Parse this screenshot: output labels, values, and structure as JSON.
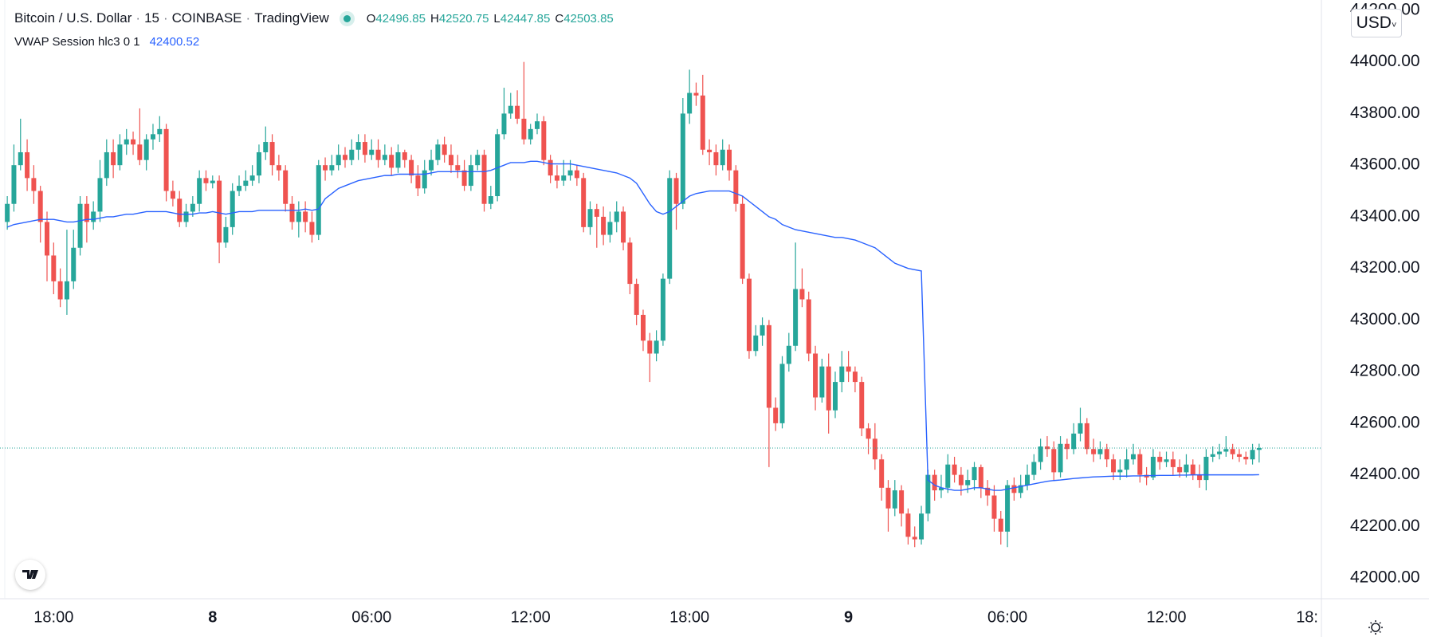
{
  "chart_data": {
    "type": "candlestick",
    "title": "Bitcoin / U.S. Dollar",
    "interval": "15",
    "exchange": "COINBASE",
    "source": "TradingView",
    "ohlc_labels": [
      "O",
      "H",
      "L",
      "C"
    ],
    "currency": "USD",
    "up_color": "#26a69a",
    "down_color": "#ef5350",
    "ylim": [
      41920,
      44240
    ],
    "yticks": [
      {
        "value": 42000,
        "label": "42000.00"
      },
      {
        "value": 42200,
        "label": "42200.00"
      },
      {
        "value": 42400,
        "label": "42400.00"
      },
      {
        "value": 42600,
        "label": "42600.00"
      },
      {
        "value": 42800,
        "label": "42800.00"
      },
      {
        "value": 43000,
        "label": "43000.00"
      },
      {
        "value": 43200,
        "label": "43200.00"
      },
      {
        "value": 43400,
        "label": "43400.00"
      },
      {
        "value": 43600,
        "label": "43600.00"
      },
      {
        "value": 43800,
        "label": "43800.00"
      },
      {
        "value": 44000,
        "label": "44000.00"
      },
      {
        "value": 44200,
        "label": "44200.00"
      }
    ],
    "xlim": [
      -1.1,
      198.4
    ],
    "xticks": [
      {
        "value": 7,
        "label": "18:00"
      },
      {
        "value": 31,
        "label": "8"
      },
      {
        "value": 55,
        "label": "06:00"
      },
      {
        "value": 79,
        "label": "12:00"
      },
      {
        "value": 103,
        "label": "18:00"
      },
      {
        "value": 127,
        "label": "9"
      },
      {
        "value": 151,
        "label": "06:00"
      },
      {
        "value": 175,
        "label": "12:00"
      },
      {
        "value": 199,
        "label": "18:"
      }
    ],
    "grid": false,
    "candles": [
      [
        43380,
        43480,
        43350,
        43450
      ],
      [
        43450,
        43680,
        43420,
        43600
      ],
      [
        43600,
        43780,
        43580,
        43650
      ],
      [
        43650,
        43700,
        43500,
        43550
      ],
      [
        43550,
        43600,
        43450,
        43500
      ],
      [
        43500,
        43520,
        43300,
        43380
      ],
      [
        43380,
        43420,
        43150,
        43250
      ],
      [
        43250,
        43300,
        43100,
        43150
      ],
      [
        43150,
        43200,
        43050,
        43080
      ],
      [
        43080,
        43350,
        43020,
        43150
      ],
      [
        43150,
        43350,
        43120,
        43280
      ],
      [
        43280,
        43480,
        43250,
        43450
      ],
      [
        43450,
        43480,
        43300,
        43380
      ],
      [
        43380,
        43460,
        43350,
        43420
      ],
      [
        43420,
        43620,
        43380,
        43550
      ],
      [
        43550,
        43700,
        43520,
        43650
      ],
      [
        43650,
        43700,
        43550,
        43600
      ],
      [
        43600,
        43720,
        43580,
        43680
      ],
      [
        43680,
        43740,
        43640,
        43700
      ],
      [
        43700,
        43730,
        43640,
        43680
      ],
      [
        43680,
        43820,
        43600,
        43620
      ],
      [
        43620,
        43720,
        43580,
        43700
      ],
      [
        43700,
        43760,
        43660,
        43720
      ],
      [
        43720,
        43790,
        43690,
        43740
      ],
      [
        43740,
        43760,
        43460,
        43500
      ],
      [
        43500,
        43540,
        43440,
        43470
      ],
      [
        43470,
        43500,
        43360,
        43380
      ],
      [
        43380,
        43450,
        43360,
        43420
      ],
      [
        43420,
        43480,
        43400,
        43450
      ],
      [
        43450,
        43580,
        43420,
        43550
      ],
      [
        43550,
        43580,
        43500,
        43530
      ],
      [
        43530,
        43560,
        43510,
        43540
      ],
      [
        43540,
        43560,
        43220,
        43300
      ],
      [
        43300,
        43400,
        43280,
        43360
      ],
      [
        43360,
        43530,
        43330,
        43500
      ],
      [
        43500,
        43560,
        43480,
        43520
      ],
      [
        43520,
        43580,
        43500,
        43540
      ],
      [
        43540,
        43600,
        43520,
        43560
      ],
      [
        43560,
        43680,
        43530,
        43650
      ],
      [
        43650,
        43750,
        43620,
        43690
      ],
      [
        43690,
        43720,
        43560,
        43600
      ],
      [
        43600,
        43640,
        43540,
        43580
      ],
      [
        43580,
        43600,
        43420,
        43450
      ],
      [
        43450,
        43480,
        43350,
        43380
      ],
      [
        43380,
        43460,
        43320,
        43420
      ],
      [
        43420,
        43460,
        43340,
        43380
      ],
      [
        43380,
        43420,
        43300,
        43330
      ],
      [
        43330,
        43620,
        43310,
        43600
      ],
      [
        43600,
        43630,
        43540,
        43580
      ],
      [
        43580,
        43640,
        43560,
        43600
      ],
      [
        43600,
        43680,
        43580,
        43640
      ],
      [
        43640,
        43670,
        43590,
        43620
      ],
      [
        43620,
        43700,
        43600,
        43660
      ],
      [
        43660,
        43720,
        43620,
        43690
      ],
      [
        43690,
        43720,
        43610,
        43640
      ],
      [
        43640,
        43700,
        43620,
        43660
      ],
      [
        43660,
        43700,
        43590,
        43620
      ],
      [
        43620,
        43680,
        43600,
        43640
      ],
      [
        43640,
        43670,
        43560,
        43590
      ],
      [
        43590,
        43680,
        43570,
        43650
      ],
      [
        43650,
        43660,
        43590,
        43620
      ],
      [
        43620,
        43640,
        43530,
        43560
      ],
      [
        43560,
        43600,
        43480,
        43510
      ],
      [
        43510,
        43620,
        43490,
        43580
      ],
      [
        43580,
        43660,
        43560,
        43620
      ],
      [
        43620,
        43700,
        43600,
        43680
      ],
      [
        43680,
        43710,
        43610,
        43640
      ],
      [
        43640,
        43680,
        43570,
        43600
      ],
      [
        43600,
        43640,
        43550,
        43580
      ],
      [
        43580,
        43620,
        43500,
        43520
      ],
      [
        43520,
        43640,
        43500,
        43600
      ],
      [
        43600,
        43660,
        43580,
        43640
      ],
      [
        43640,
        43660,
        43420,
        43450
      ],
      [
        43450,
        43520,
        43430,
        43480
      ],
      [
        43480,
        43740,
        43460,
        43720
      ],
      [
        43720,
        43900,
        43700,
        43800
      ],
      [
        43800,
        43880,
        43780,
        43830
      ],
      [
        43830,
        43890,
        43760,
        43780
      ],
      [
        43780,
        44000,
        43680,
        43700
      ],
      [
        43700,
        43760,
        43680,
        43740
      ],
      [
        43740,
        43800,
        43720,
        43770
      ],
      [
        43770,
        43790,
        43600,
        43620
      ],
      [
        43620,
        43640,
        43530,
        43560
      ],
      [
        43560,
        43600,
        43510,
        43540
      ],
      [
        43540,
        43620,
        43520,
        43560
      ],
      [
        43560,
        43620,
        43540,
        43580
      ],
      [
        43580,
        43600,
        43520,
        43550
      ],
      [
        43550,
        43570,
        43340,
        43360
      ],
      [
        43360,
        43460,
        43330,
        43430
      ],
      [
        43430,
        43450,
        43280,
        43400
      ],
      [
        43400,
        43440,
        43290,
        43330
      ],
      [
        43330,
        43420,
        43300,
        43380
      ],
      [
        43380,
        43460,
        43340,
        43420
      ],
      [
        43420,
        43440,
        43270,
        43300
      ],
      [
        43300,
        43320,
        43100,
        43140
      ],
      [
        43140,
        43160,
        42980,
        43020
      ],
      [
        43020,
        43040,
        42880,
        42920
      ],
      [
        42920,
        42950,
        42760,
        42870
      ],
      [
        42870,
        42960,
        42840,
        42920
      ],
      [
        42920,
        43180,
        42900,
        43160
      ],
      [
        43160,
        43580,
        43140,
        43550
      ],
      [
        43550,
        43570,
        43350,
        43450
      ],
      [
        43450,
        43860,
        43430,
        43800
      ],
      [
        43800,
        43970,
        43760,
        43880
      ],
      [
        43880,
        43920,
        43830,
        43870
      ],
      [
        43870,
        43950,
        43640,
        43660
      ],
      [
        43660,
        43700,
        43600,
        43650
      ],
      [
        43650,
        43680,
        43560,
        43600
      ],
      [
        43600,
        43700,
        43580,
        43660
      ],
      [
        43660,
        43680,
        43540,
        43580
      ],
      [
        43580,
        43600,
        43420,
        43450
      ],
      [
        43450,
        43480,
        43140,
        43160
      ],
      [
        43160,
        43180,
        42850,
        42880
      ],
      [
        42880,
        42980,
        42860,
        42940
      ],
      [
        42940,
        43010,
        42900,
        42980
      ],
      [
        42980,
        43000,
        42430,
        42660
      ],
      [
        42660,
        42700,
        42570,
        42600
      ],
      [
        42600,
        42860,
        42580,
        42830
      ],
      [
        42830,
        42950,
        42800,
        42900
      ],
      [
        42900,
        43300,
        42880,
        43120
      ],
      [
        43120,
        43200,
        43050,
        43080
      ],
      [
        43080,
        43110,
        42840,
        42870
      ],
      [
        42870,
        42900,
        42650,
        42700
      ],
      [
        42700,
        42850,
        42680,
        42820
      ],
      [
        42820,
        42870,
        42560,
        42650
      ],
      [
        42650,
        42800,
        42620,
        42760
      ],
      [
        42760,
        42880,
        42720,
        42820
      ],
      [
        42820,
        42880,
        42760,
        42800
      ],
      [
        42800,
        42820,
        42720,
        42760
      ],
      [
        42760,
        42780,
        42550,
        42580
      ],
      [
        42580,
        42600,
        42480,
        42540
      ],
      [
        42540,
        42600,
        42420,
        42460
      ],
      [
        42460,
        42480,
        42300,
        42350
      ],
      [
        42350,
        42380,
        42180,
        42270
      ],
      [
        42270,
        42380,
        42240,
        42340
      ],
      [
        42340,
        42360,
        42200,
        42250
      ],
      [
        42250,
        42270,
        42130,
        42160
      ],
      [
        42160,
        42200,
        42120,
        42150
      ],
      [
        42150,
        42280,
        42130,
        42250
      ],
      [
        42250,
        42420,
        42220,
        42400
      ],
      [
        42400,
        42420,
        42300,
        42340
      ],
      [
        42340,
        42400,
        42310,
        42350
      ],
      [
        42350,
        42480,
        42330,
        42440
      ],
      [
        42440,
        42470,
        42370,
        42400
      ],
      [
        42400,
        42430,
        42320,
        42360
      ],
      [
        42360,
        42420,
        42330,
        42380
      ],
      [
        42380,
        42450,
        42340,
        42430
      ],
      [
        42430,
        42440,
        42310,
        42350
      ],
      [
        42350,
        42380,
        42280,
        42320
      ],
      [
        42320,
        42360,
        42180,
        42230
      ],
      [
        42230,
        42260,
        42130,
        42180
      ],
      [
        42180,
        42380,
        42120,
        42360
      ],
      [
        42360,
        42390,
        42300,
        42330
      ],
      [
        42330,
        42400,
        42310,
        42360
      ],
      [
        42360,
        42440,
        42340,
        42400
      ],
      [
        42400,
        42480,
        42380,
        42450
      ],
      [
        42450,
        42540,
        42420,
        42510
      ],
      [
        42510,
        42550,
        42470,
        42500
      ],
      [
        42500,
        42530,
        42380,
        42410
      ],
      [
        42410,
        42550,
        42390,
        42520
      ],
      [
        42520,
        42540,
        42460,
        42500
      ],
      [
        42500,
        42600,
        42480,
        42560
      ],
      [
        42560,
        42660,
        42530,
        42600
      ],
      [
        42600,
        42620,
        42480,
        42500
      ],
      [
        42500,
        42540,
        42450,
        42480
      ],
      [
        42480,
        42530,
        42460,
        42500
      ],
      [
        42500,
        42520,
        42430,
        42460
      ],
      [
        42460,
        42480,
        42380,
        42410
      ],
      [
        42410,
        42460,
        42380,
        42420
      ],
      [
        42420,
        42500,
        42390,
        42460
      ],
      [
        42460,
        42520,
        42440,
        42480
      ],
      [
        42480,
        42500,
        42370,
        42400
      ],
      [
        42400,
        42430,
        42360,
        42390
      ],
      [
        42390,
        42500,
        42380,
        42470
      ],
      [
        42470,
        42490,
        42420,
        42450
      ],
      [
        42450,
        42490,
        42430,
        42460
      ],
      [
        42460,
        42490,
        42400,
        42430
      ],
      [
        42430,
        42460,
        42390,
        42410
      ],
      [
        42410,
        42480,
        42390,
        42440
      ],
      [
        42440,
        42460,
        42380,
        42400
      ],
      [
        42400,
        42440,
        42350,
        42380
      ],
      [
        42380,
        42500,
        42340,
        42470
      ],
      [
        42470,
        42510,
        42450,
        42480
      ],
      [
        42480,
        42520,
        42460,
        42490
      ],
      [
        42490,
        42550,
        42470,
        42500
      ],
      [
        42500,
        42520,
        42460,
        42480
      ],
      [
        42480,
        42500,
        42450,
        42470
      ],
      [
        42470,
        42490,
        42440,
        42460
      ],
      [
        42460,
        42520,
        42440,
        42496.85
      ],
      [
        42496.85,
        42520.75,
        42447.85,
        42503.85
      ]
    ],
    "indicator": {
      "name": "VWAP Session hlc3 0 1",
      "color": "#2962ff",
      "values": [
        43360,
        43370,
        43375,
        43380,
        43385,
        43390,
        43390,
        43390,
        43385,
        43380,
        43380,
        43385,
        43390,
        43390,
        43395,
        43400,
        43400,
        43405,
        43410,
        43410,
        43415,
        43420,
        43420,
        43420,
        43420,
        43415,
        43410,
        43410,
        43410,
        43415,
        43415,
        43420,
        43415,
        43410,
        43415,
        43420,
        43420,
        43420,
        43425,
        43425,
        43425,
        43425,
        43425,
        43425,
        43425,
        43430,
        43425,
        43430,
        43470,
        43490,
        43510,
        43520,
        43530,
        43540,
        43545,
        43550,
        43555,
        43560,
        43560,
        43565,
        43565,
        43565,
        43565,
        43565,
        43570,
        43575,
        43575,
        43575,
        43575,
        43575,
        43575,
        43575,
        43575,
        43580,
        43590,
        43600,
        43610,
        43610,
        43610,
        43615,
        43615,
        43610,
        43605,
        43605,
        43605,
        43605,
        43600,
        43595,
        43590,
        43585,
        43580,
        43575,
        43570,
        43560,
        43550,
        43530,
        43490,
        43450,
        43420,
        43410,
        43420,
        43440,
        43460,
        43480,
        43490,
        43495,
        43500,
        43500,
        43500,
        43500,
        43490,
        43480,
        43460,
        43440,
        43420,
        43400,
        43390,
        43370,
        43360,
        43350,
        43345,
        43340,
        43335,
        43330,
        43325,
        43320,
        43320,
        43315,
        43310,
        43300,
        43290,
        43280,
        43260,
        43240,
        43220,
        43210,
        43200,
        43195,
        43190,
        42380,
        42360,
        42350,
        42345,
        42340,
        42340,
        42345,
        42350,
        42350,
        42345,
        42340,
        42340,
        42345,
        42350,
        42355,
        42360,
        42365,
        42370,
        42375,
        42378,
        42380,
        42383,
        42386,
        42388,
        42390,
        42392,
        42393,
        42394,
        42395,
        42395,
        42395,
        42396,
        42396,
        42397,
        42397,
        42398,
        42398,
        42398,
        42399,
        42399,
        42400,
        42400,
        42400,
        42400,
        42400,
        42400,
        42400,
        42400,
        42400,
        42400,
        42400.52
      ]
    }
  }
}
